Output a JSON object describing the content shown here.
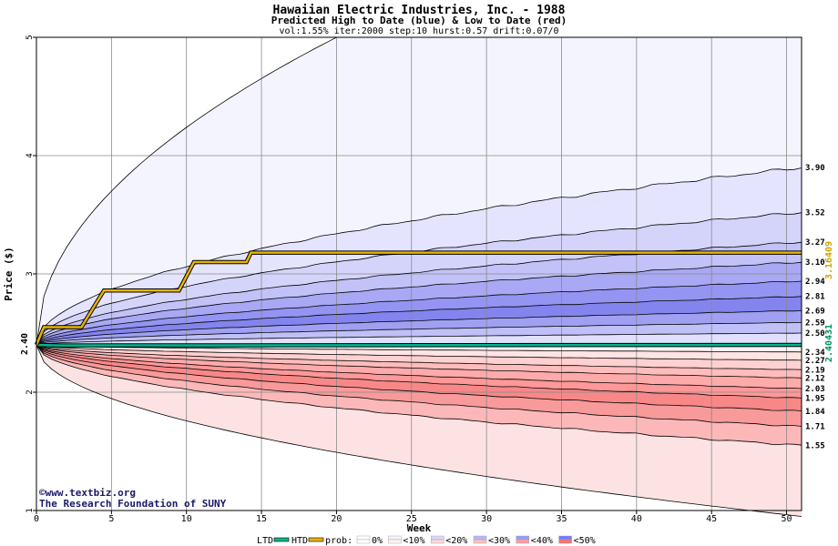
{
  "chart_data": {
    "type": "area",
    "title": "Hawaiian Electric Industries, Inc. - 1988",
    "subtitle": "Predicted High to Date (blue) &  Low to Date (red)",
    "params": "vol:1.55% iter:2000 step:10 hurst:0.57 drift:0.07/0",
    "xlabel": "Week",
    "ylabel": "Price ($)",
    "xlim": [
      0,
      51
    ],
    "ylim": [
      1,
      5
    ],
    "x_ticks": [
      "0",
      "5",
      "10",
      "15",
      "20",
      "25",
      "30",
      "35",
      "40",
      "45",
      "50"
    ],
    "y_ticks": [
      "1",
      "2",
      "3",
      "4",
      "5"
    ],
    "start_price": 2.4,
    "start_price_label": "2.40",
    "grid": true,
    "upper_band_ends": [
      3.9,
      3.52,
      3.27,
      3.1,
      2.94,
      2.81,
      2.69,
      2.59,
      2.5
    ],
    "upper_band_labels": [
      "3.90",
      "3.52",
      "3.27",
      "3.10",
      "2.94",
      "2.81",
      "2.69",
      "2.59",
      "2.50"
    ],
    "lower_band_ends": [
      2.34,
      2.27,
      2.19,
      2.12,
      2.03,
      1.95,
      1.84,
      1.71,
      1.55
    ],
    "lower_band_labels": [
      "2.34",
      "2.27",
      "2.19",
      "2.12",
      "2.03",
      "1.95",
      "1.84",
      "1.71",
      "1.55"
    ],
    "extreme_high_end_week": 20,
    "extreme_low_end": 0.95,
    "htd_series": {
      "name": "HTD",
      "points": [
        [
          0,
          2.4
        ],
        [
          0.5,
          2.55
        ],
        [
          3,
          2.55
        ],
        [
          4.5,
          2.86
        ],
        [
          9.5,
          2.86
        ],
        [
          10.5,
          3.1
        ],
        [
          14,
          3.1
        ],
        [
          14.3,
          3.18
        ],
        [
          51,
          3.18
        ]
      ]
    },
    "ltd_series": {
      "name": "LTD",
      "points": [
        [
          0,
          2.4
        ],
        [
          1.5,
          2.395
        ],
        [
          51,
          2.4
        ]
      ]
    },
    "right_value_labels": [
      "3.16409",
      "2.40431"
    ],
    "right_value_colors": [
      "#c8a400",
      "#009060"
    ],
    "colors": {
      "htd": "#e8b400",
      "ltd": "#00b890",
      "upper_base": "#4848e8",
      "lower_base": "#e84848"
    },
    "legend": {
      "placement": "bottom",
      "ltd_label": "LTD",
      "htd_label": "HTD",
      "prob_label": "prob:",
      "buckets": [
        "0%",
        "<10%",
        "<20%",
        "<30%",
        "<40%",
        "<50%"
      ],
      "bucket_up_colors": [
        "#ffffff",
        "#f4f4ff",
        "#d8d8ff",
        "#b8b8ff",
        "#9a9aff",
        "#7a7aff"
      ],
      "bucket_down_colors": [
        "#ffffff",
        "#fff4f4",
        "#ffd8d8",
        "#ffc0c0",
        "#ff9e9e",
        "#ff7070"
      ]
    },
    "credits": [
      "©www.textbiz.org",
      "The Research Foundation of SUNY"
    ]
  }
}
